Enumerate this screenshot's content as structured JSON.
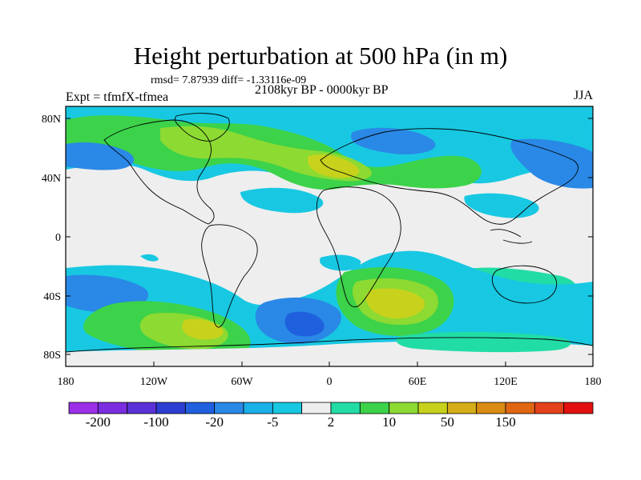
{
  "header": {
    "title": "Height perturbation at 500 hPa (in m)",
    "stats": "rmsd= 7.87939 diff= -1.33116e-09",
    "subtitle": "2108kyr BP - 0000kyr BP",
    "experiment": "Expt = tfmfX-tfmea",
    "season": "JJA"
  },
  "map": {
    "lat_ticks": [
      "80N",
      "40N",
      "0",
      "40S",
      "80S"
    ],
    "lon_ticks": [
      "180",
      "120W",
      "60W",
      "0",
      "60E",
      "120E",
      "180"
    ]
  },
  "colorbar": {
    "colors": [
      "#9b30e8",
      "#7b2ee0",
      "#5a32d8",
      "#2e3ed2",
      "#1f60de",
      "#2a88e6",
      "#1ab0e8",
      "#18c8e2",
      "#eeeeee",
      "#22dca6",
      "#3cd24a",
      "#8cda32",
      "#c8d21c",
      "#d4ae16",
      "#da8c12",
      "#e06612",
      "#e4401a",
      "#e41010"
    ],
    "labels": [
      "-200",
      "-100",
      "-20",
      "-5",
      "2",
      "10",
      "50",
      "150"
    ]
  }
}
